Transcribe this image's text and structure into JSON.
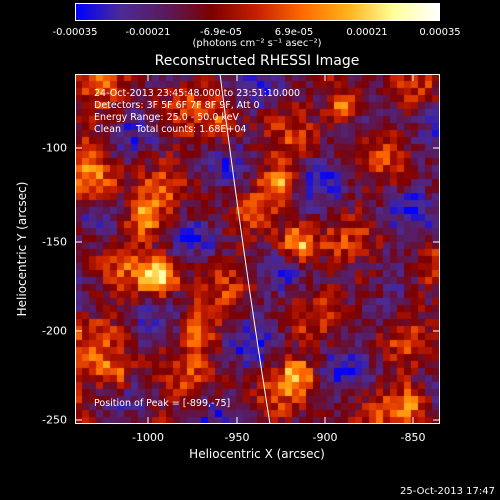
{
  "colorbar": {
    "ticks": [
      "-0.00035",
      "-0.00021",
      "-6.9e-05",
      "6.9e-05",
      "0.00021",
      "0.00035"
    ],
    "units": "(photons cm⁻² s⁻¹ asec⁻²)",
    "stops": [
      "#0000ff",
      "#4b2b95",
      "#5a1a5a",
      "#7d0000",
      "#c82000",
      "#ff6a00",
      "#ffb31a",
      "#ffff99",
      "#ffffff"
    ]
  },
  "title": "Reconstructed RHESSI Image",
  "info": {
    "line1": "24-Oct-2013 23:45:48.000 to 23:51:10.000",
    "line2": "Detectors: 3F 5F 6F 7F 8F 9F, Att 0",
    "line3": "Energy Range: 25.0 - 50.0 keV",
    "line4": "Clean     Total counts: 1.68E+04"
  },
  "peak": "Position of Peak = [-899,-75]",
  "axes": {
    "xlabel": "Heliocentric X (arcsec)",
    "ylabel": "Heliocentric Y (arcsec)",
    "xticks": [
      "-1000",
      "-950",
      "-900",
      "-850"
    ],
    "yticks": [
      "-100",
      "-150",
      "-200",
      "-250"
    ]
  },
  "timestamp": "25-Oct-2013 17:47"
}
